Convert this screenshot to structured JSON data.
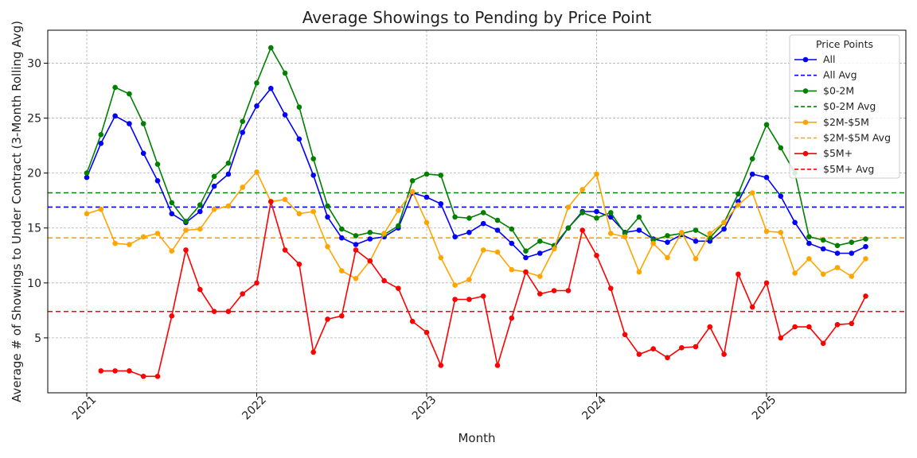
{
  "chart_data": {
    "type": "line",
    "title": "Average Showings to Pending by Price Point",
    "xlabel": "Month",
    "ylabel": "Average # of Showings to Under Contract (3-Month Rolling Avg)",
    "x_start": "2021-01",
    "xticks": [
      "2021",
      "2022",
      "2023",
      "2024",
      "2025"
    ],
    "yticks": [
      5,
      10,
      15,
      20,
      25,
      30
    ],
    "ylim": [
      0,
      33
    ],
    "grid": true,
    "legend": {
      "title": "Price Points",
      "position": "top-right"
    },
    "series": [
      {
        "name": "All",
        "avg_name": "All Avg",
        "color": "#0000ff",
        "avg": 16.9,
        "values": [
          19.6,
          22.7,
          25.2,
          24.5,
          21.8,
          19.3,
          16.3,
          15.5,
          16.5,
          18.8,
          19.9,
          23.7,
          26.1,
          27.7,
          25.3,
          23.1,
          19.8,
          16.0,
          14.1,
          13.5,
          14.0,
          14.2,
          15.0,
          18.2,
          17.8,
          17.2,
          14.2,
          14.6,
          15.4,
          14.8,
          13.6,
          12.3,
          12.7,
          13.2,
          15.0,
          16.5,
          16.5,
          16.0,
          14.6,
          14.8,
          14.0,
          13.7,
          14.4,
          13.8,
          13.8,
          14.9,
          17.4,
          19.9,
          19.6,
          17.9,
          15.5,
          13.6,
          13.1,
          12.7,
          12.7,
          13.3
        ]
      },
      {
        "name": "$0-2M",
        "avg_name": "$0-2M Avg",
        "color": "#008000",
        "avg": 18.2,
        "values": [
          20.0,
          23.5,
          27.8,
          27.2,
          24.5,
          20.8,
          17.3,
          15.6,
          17.1,
          19.7,
          20.9,
          24.7,
          28.2,
          31.4,
          29.1,
          26.0,
          21.3,
          17.0,
          14.9,
          14.3,
          14.6,
          14.4,
          15.2,
          19.3,
          19.9,
          19.8,
          16.0,
          15.9,
          16.4,
          15.7,
          14.9,
          12.9,
          13.8,
          13.4,
          15.0,
          16.4,
          15.9,
          16.4,
          14.5,
          16.0,
          13.9,
          14.3,
          14.5,
          14.8,
          14.1,
          15.5,
          18.1,
          21.3,
          24.4,
          22.3,
          20.0,
          14.2,
          13.9,
          13.4,
          13.7,
          14.0
        ]
      },
      {
        "name": "$2M-$5M",
        "avg_name": "$2M-$5M Avg",
        "color": "#ffa500",
        "avg": 14.1,
        "values": [
          16.3,
          16.7,
          13.6,
          13.5,
          14.2,
          14.5,
          12.9,
          14.8,
          14.9,
          16.7,
          17.0,
          18.7,
          20.1,
          17.4,
          17.6,
          16.3,
          16.5,
          13.3,
          11.1,
          10.4,
          12.0,
          14.5,
          16.6,
          18.3,
          15.5,
          12.3,
          9.8,
          10.3,
          13.0,
          12.8,
          11.2,
          11.0,
          10.6,
          13.1,
          16.9,
          18.5,
          19.9,
          14.5,
          14.2,
          11.0,
          13.6,
          12.3,
          14.6,
          12.2,
          14.5,
          15.5,
          17.1,
          18.2,
          14.7,
          14.6,
          10.9,
          12.2,
          10.8,
          11.4,
          10.6,
          12.2
        ]
      },
      {
        "name": "$5M+",
        "avg_name": "$5M+ Avg",
        "color": "#ff0000",
        "avg": 7.4,
        "values": [
          null,
          2.0,
          2.0,
          2.0,
          1.5,
          1.5,
          7.0,
          13.0,
          9.4,
          7.4,
          7.4,
          9.0,
          10.0,
          17.4,
          13.0,
          11.7,
          3.7,
          6.7,
          7.0,
          13.0,
          12.0,
          10.2,
          9.5,
          6.5,
          5.5,
          2.5,
          8.5,
          8.5,
          8.8,
          2.5,
          6.8,
          11.0,
          9.0,
          9.3,
          9.3,
          14.8,
          12.5,
          9.5,
          5.3,
          3.5,
          4.0,
          3.2,
          4.1,
          4.2,
          6.0,
          3.5,
          10.8,
          7.8,
          10.0,
          5.0,
          6.0,
          6.0,
          4.5,
          6.2,
          6.3,
          8.8
        ]
      }
    ]
  }
}
